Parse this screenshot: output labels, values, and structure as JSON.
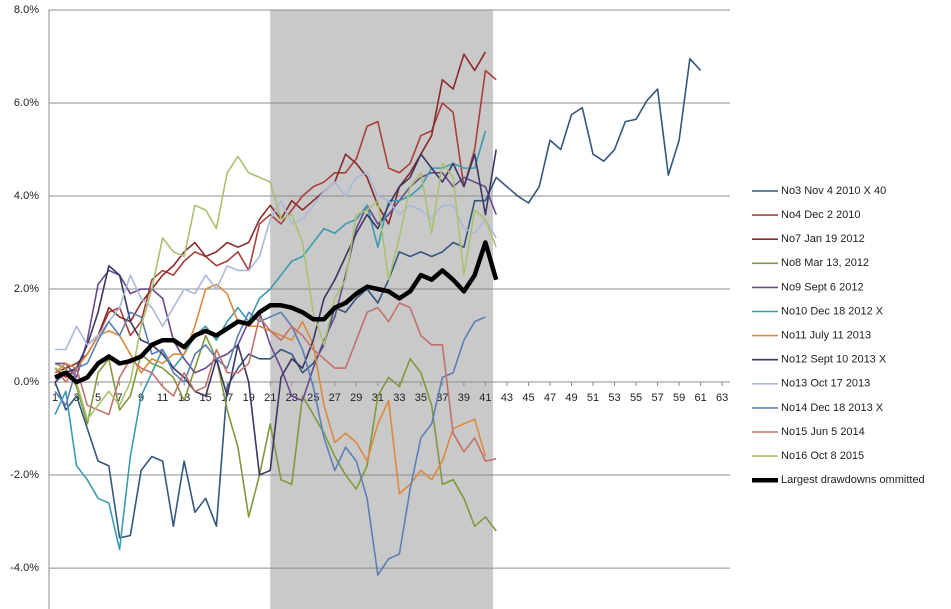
{
  "chart_data": {
    "type": "line",
    "x": [
      1,
      2,
      3,
      4,
      5,
      6,
      7,
      8,
      9,
      10,
      11,
      12,
      13,
      14,
      15,
      16,
      17,
      18,
      19,
      20,
      21,
      22,
      23,
      24,
      25,
      26,
      27,
      28,
      29,
      30,
      31,
      32,
      33,
      34,
      35,
      36,
      37,
      38,
      39,
      40,
      41,
      42,
      43,
      44,
      45,
      46,
      47,
      48,
      49,
      50,
      51,
      52,
      53,
      54,
      55,
      56,
      57,
      58,
      59,
      60,
      61,
      62,
      63
    ],
    "xlim": [
      0.44,
      63.73
    ],
    "xticks": [
      1,
      3,
      5,
      7,
      9,
      11,
      13,
      15,
      17,
      19,
      21,
      23,
      25,
      27,
      29,
      31,
      33,
      35,
      37,
      39,
      41,
      43,
      45,
      47,
      49,
      51,
      53,
      55,
      57,
      59,
      61,
      63
    ],
    "ylim": [
      -4.88,
      8
    ],
    "yticks": [
      {
        "value": -4,
        "label": "-4.0%"
      },
      {
        "value": -2,
        "label": "-2.0%"
      },
      {
        "value": 0,
        "label": "0.0%"
      },
      {
        "value": 2,
        "label": "2.0%"
      },
      {
        "value": 4,
        "label": "4.0%"
      },
      {
        "value": 6,
        "label": "6.0%"
      },
      {
        "value": 8,
        "label": "8.0%"
      }
    ],
    "grid": true,
    "shaded_x": [
      21,
      41.7
    ],
    "shade_color": "#c9c9c9",
    "legend": "right",
    "series": [
      {
        "name": "No3 Nov 4 2010  X 40",
        "color": "#34577f",
        "values": [
          0.0,
          -0.6,
          -0.3,
          -1.0,
          -1.7,
          -1.8,
          -3.35,
          -3.3,
          -1.9,
          -1.6,
          -1.7,
          -3.1,
          -1.7,
          -2.8,
          -2.5,
          -3.1,
          -0.1,
          0.3,
          0.6,
          0.5,
          0.5,
          0.7,
          0.6,
          0.2,
          0.4,
          0.8,
          1.6,
          1.5,
          1.8,
          2.0,
          1.7,
          2.2,
          2.8,
          2.7,
          2.8,
          2.7,
          2.8,
          3.0,
          2.9,
          3.9,
          3.9,
          4.4,
          4.2,
          4.0,
          3.85,
          4.2,
          5.2,
          5.0,
          5.75,
          5.9,
          4.9,
          4.75,
          5.0,
          5.6,
          5.65,
          6.05,
          6.3,
          4.45,
          5.2,
          6.95,
          6.7,
          null,
          null
        ]
      },
      {
        "name": "No4 Dec 2 2010",
        "color": "#a8403d",
        "values": [
          0.3,
          0.1,
          0.3,
          0.8,
          1.0,
          1.5,
          1.6,
          1.0,
          1.3,
          2.2,
          2.4,
          2.3,
          2.6,
          2.8,
          2.7,
          2.5,
          2.6,
          2.8,
          2.4,
          3.4,
          3.6,
          3.4,
          3.7,
          4.0,
          4.2,
          4.3,
          4.5,
          4.5,
          4.8,
          5.5,
          5.6,
          4.6,
          4.5,
          4.7,
          5.3,
          5.4,
          6.0,
          5.8,
          4.2,
          5.0,
          6.7,
          6.5,
          null,
          null,
          null,
          null,
          null,
          null,
          null,
          null,
          null,
          null,
          null,
          null,
          null,
          null,
          null,
          null,
          null,
          null,
          null,
          null,
          null
        ]
      },
      {
        "name": "No7 Jan 19 2012",
        "color": "#8a2a2a",
        "values": [
          0.2,
          0.3,
          0.4,
          0.6,
          1.0,
          1.6,
          1.4,
          1.3,
          1.7,
          2.0,
          2.3,
          2.5,
          2.8,
          3.0,
          2.7,
          2.8,
          3.0,
          2.9,
          3.0,
          3.5,
          3.8,
          3.5,
          3.9,
          3.7,
          3.9,
          4.1,
          4.3,
          4.9,
          4.7,
          4.4,
          3.8,
          3.4,
          4.2,
          4.5,
          4.9,
          5.3,
          6.5,
          6.3,
          7.05,
          6.7,
          7.1,
          null,
          null,
          null,
          null,
          null,
          null,
          null,
          null,
          null,
          null,
          null,
          null,
          null,
          null,
          null,
          null,
          null,
          null,
          null,
          null,
          null,
          null
        ]
      },
      {
        "name": "No8 Mar 13, 2012",
        "color": "#7f9a3d",
        "values": [
          0.4,
          0.3,
          -0.1,
          -0.9,
          0.2,
          0.5,
          -0.6,
          -0.3,
          0.6,
          0.4,
          0.3,
          0.1,
          -0.4,
          0.3,
          1.0,
          0.5,
          -0.6,
          -1.4,
          -2.9,
          -2.0,
          -0.9,
          -2.1,
          -2.2,
          -0.3,
          -0.7,
          -1.1,
          -1.6,
          -2.0,
          -2.3,
          -1.8,
          -0.3,
          0.1,
          -0.1,
          0.5,
          0.2,
          -0.5,
          -2.2,
          -2.1,
          -2.5,
          -3.1,
          -2.9,
          -3.2,
          null,
          null,
          null,
          null,
          null,
          null,
          null,
          null,
          null,
          null,
          null,
          null,
          null,
          null,
          null,
          null,
          null,
          null,
          null,
          null,
          null
        ]
      },
      {
        "name": "No9 Sept 6 2012",
        "color": "#6a4a8e",
        "values": [
          0.4,
          0.4,
          0.1,
          0.9,
          2.1,
          2.4,
          2.3,
          1.9,
          2.0,
          2.0,
          1.8,
          0.9,
          0.5,
          0.2,
          0.3,
          0.5,
          0.6,
          0.8,
          1.3,
          1.5,
          0.8,
          0.3,
          -0.3,
          -0.4,
          0.3,
          0.9,
          1.4,
          2.3,
          3.3,
          3.8,
          3.4,
          3.6,
          3.9,
          4.2,
          4.4,
          4.5,
          4.5,
          4.2,
          4.4,
          4.3,
          4.2,
          3.6,
          null,
          null,
          null,
          null,
          null,
          null,
          null,
          null,
          null,
          null,
          null,
          null,
          null,
          null,
          null,
          null,
          null,
          null,
          null,
          null,
          null
        ]
      },
      {
        "name": "No10 Dec 18 2012 X",
        "color": "#3b9bb3",
        "values": [
          -0.7,
          -0.2,
          -1.8,
          -2.1,
          -2.5,
          -2.6,
          -3.6,
          -1.6,
          -0.3,
          0.2,
          0.7,
          0.3,
          0.6,
          1.0,
          1.2,
          0.9,
          1.3,
          1.6,
          1.3,
          1.8,
          2.0,
          2.3,
          2.6,
          2.7,
          3.0,
          3.3,
          3.2,
          3.4,
          3.5,
          3.8,
          2.9,
          3.9,
          3.9,
          4.0,
          4.2,
          4.6,
          4.6,
          4.7,
          4.6,
          4.6,
          5.4,
          null,
          null,
          null,
          null,
          null,
          null,
          null,
          null,
          null,
          null,
          null,
          null,
          null,
          null,
          null,
          null,
          null,
          null,
          null,
          null,
          null,
          null
        ]
      },
      {
        "name": "No11 July 11 2013",
        "color": "#db8a3c",
        "values": [
          0.2,
          0.4,
          0.3,
          0.6,
          1.0,
          1.1,
          1.0,
          0.6,
          0.2,
          0.5,
          0.4,
          0.6,
          0.6,
          1.2,
          2.0,
          2.1,
          1.9,
          1.3,
          1.2,
          1.2,
          1.1,
          1.0,
          0.9,
          1.3,
          0.8,
          -0.5,
          -1.3,
          -1.1,
          -1.3,
          -1.7,
          -0.9,
          -0.4,
          -2.4,
          -2.2,
          -1.9,
          -2.1,
          -1.7,
          -1.0,
          -0.9,
          -0.8,
          -1.6,
          null,
          null,
          null,
          null,
          null,
          null,
          null,
          null,
          null,
          null,
          null,
          null,
          null,
          null,
          null,
          null,
          null,
          null,
          null,
          null,
          null,
          null
        ]
      },
      {
        "name": "No12 Sept 10 2013 X",
        "color": "#3b3762",
        "values": [
          0.0,
          0.2,
          0.3,
          0.8,
          1.5,
          2.5,
          2.3,
          1.3,
          0.9,
          0.8,
          0.6,
          0.3,
          0.1,
          -0.2,
          -0.3,
          0.5,
          -0.3,
          0.8,
          0.0,
          -2.0,
          -1.9,
          0.1,
          0.5,
          0.3,
          0.9,
          1.8,
          2.2,
          2.7,
          3.2,
          3.6,
          3.3,
          3.8,
          4.2,
          4.4,
          4.9,
          4.6,
          4.3,
          4.7,
          4.2,
          4.9,
          3.6,
          5.0,
          null,
          null,
          null,
          null,
          null,
          null,
          null,
          null,
          null,
          null,
          null,
          null,
          null,
          null,
          null,
          null,
          null,
          null,
          null,
          null,
          null
        ]
      },
      {
        "name": "No13 Oct 17 2013",
        "color": "#aab9d9",
        "values": [
          0.7,
          0.7,
          1.2,
          0.8,
          1.0,
          1.3,
          1.6,
          2.3,
          1.8,
          1.6,
          1.2,
          1.6,
          2.0,
          1.9,
          2.3,
          2.0,
          2.5,
          2.4,
          2.4,
          2.7,
          3.5,
          3.9,
          3.4,
          3.5,
          3.8,
          4.1,
          4.3,
          4.0,
          4.4,
          4.5,
          4.0,
          3.9,
          3.6,
          3.8,
          3.7,
          3.5,
          3.8,
          3.8,
          3.3,
          3.2,
          3.5,
          3.1,
          null,
          null,
          null,
          null,
          null,
          null,
          null,
          null,
          null,
          null,
          null,
          null,
          null,
          null,
          null,
          null,
          null,
          null,
          null,
          null,
          null
        ]
      },
      {
        "name": "No14 Dec 18 2013 X",
        "color": "#5c80b6",
        "values": [
          -0.2,
          -0.5,
          0.3,
          0.4,
          0.9,
          1.3,
          1.0,
          1.5,
          1.4,
          0.6,
          0.7,
          0.2,
          0.0,
          0.6,
          0.8,
          0.5,
          0.3,
          1.0,
          1.5,
          1.3,
          1.4,
          1.5,
          1.2,
          0.7,
          -0.1,
          -1.2,
          -1.9,
          -1.4,
          -1.7,
          -2.5,
          -4.15,
          -3.8,
          -3.7,
          -2.3,
          -1.2,
          -0.9,
          0.1,
          0.2,
          0.9,
          1.3,
          1.4,
          null,
          null,
          null,
          null,
          null,
          null,
          null,
          null,
          null,
          null,
          null,
          null,
          null,
          null,
          null,
          null,
          null,
          null,
          null,
          null,
          null,
          null
        ]
      },
      {
        "name": "No15 Jun 5 2014",
        "color": "#c2726c",
        "values": [
          0.3,
          0.0,
          0.3,
          -0.5,
          -0.6,
          -0.7,
          0.1,
          0.5,
          0.3,
          0.2,
          -0.1,
          -0.3,
          0.2,
          -0.2,
          -0.1,
          0.7,
          0.2,
          0.2,
          0.4,
          1.4,
          1.1,
          0.9,
          1.2,
          1.0,
          0.7,
          0.5,
          0.3,
          0.3,
          0.9,
          1.5,
          1.6,
          1.3,
          1.7,
          1.6,
          1.0,
          0.8,
          0.8,
          -1.1,
          -1.5,
          -1.2,
          -1.7,
          -1.65,
          null,
          null,
          null,
          null,
          null,
          null,
          null,
          null,
          null,
          null,
          null,
          null,
          null,
          null,
          null,
          null,
          null,
          null,
          null,
          null,
          null
        ]
      },
      {
        "name": "No16 Oct 8 2015",
        "color": "#a9c26f",
        "values": [
          0.3,
          0.2,
          0.0,
          -0.8,
          -0.5,
          -0.2,
          -0.5,
          0.0,
          1.2,
          2.0,
          3.1,
          2.8,
          2.7,
          3.8,
          3.7,
          3.3,
          4.5,
          4.85,
          4.5,
          4.4,
          4.3,
          3.5,
          3.6,
          3.0,
          1.5,
          0.8,
          1.8,
          2.2,
          3.6,
          3.7,
          3.9,
          2.2,
          3.1,
          4.2,
          4.5,
          3.2,
          4.7,
          4.4,
          2.3,
          3.7,
          3.5,
          2.9,
          null,
          null,
          null,
          null,
          null,
          null,
          null,
          null,
          null,
          null,
          null,
          null,
          null,
          null,
          null,
          null,
          null,
          null,
          null,
          null,
          null
        ]
      },
      {
        "name": "Largest drawdowns ommitted",
        "color": "#000000",
        "line_width": 4.5,
        "values": [
          0.1,
          0.2,
          0.0,
          0.1,
          0.4,
          0.55,
          0.4,
          0.45,
          0.55,
          0.8,
          0.9,
          0.9,
          0.75,
          1.0,
          1.1,
          1.0,
          1.15,
          1.3,
          1.25,
          1.5,
          1.65,
          1.65,
          1.6,
          1.5,
          1.35,
          1.35,
          1.6,
          1.7,
          1.9,
          2.05,
          2.0,
          1.95,
          1.8,
          1.95,
          2.3,
          2.2,
          2.4,
          2.2,
          1.95,
          2.3,
          3.0,
          2.2,
          null,
          null,
          null,
          null,
          null,
          null,
          null,
          null,
          null,
          null,
          null,
          null,
          null,
          null,
          null,
          null,
          null,
          null,
          null,
          null,
          null
        ]
      }
    ]
  }
}
